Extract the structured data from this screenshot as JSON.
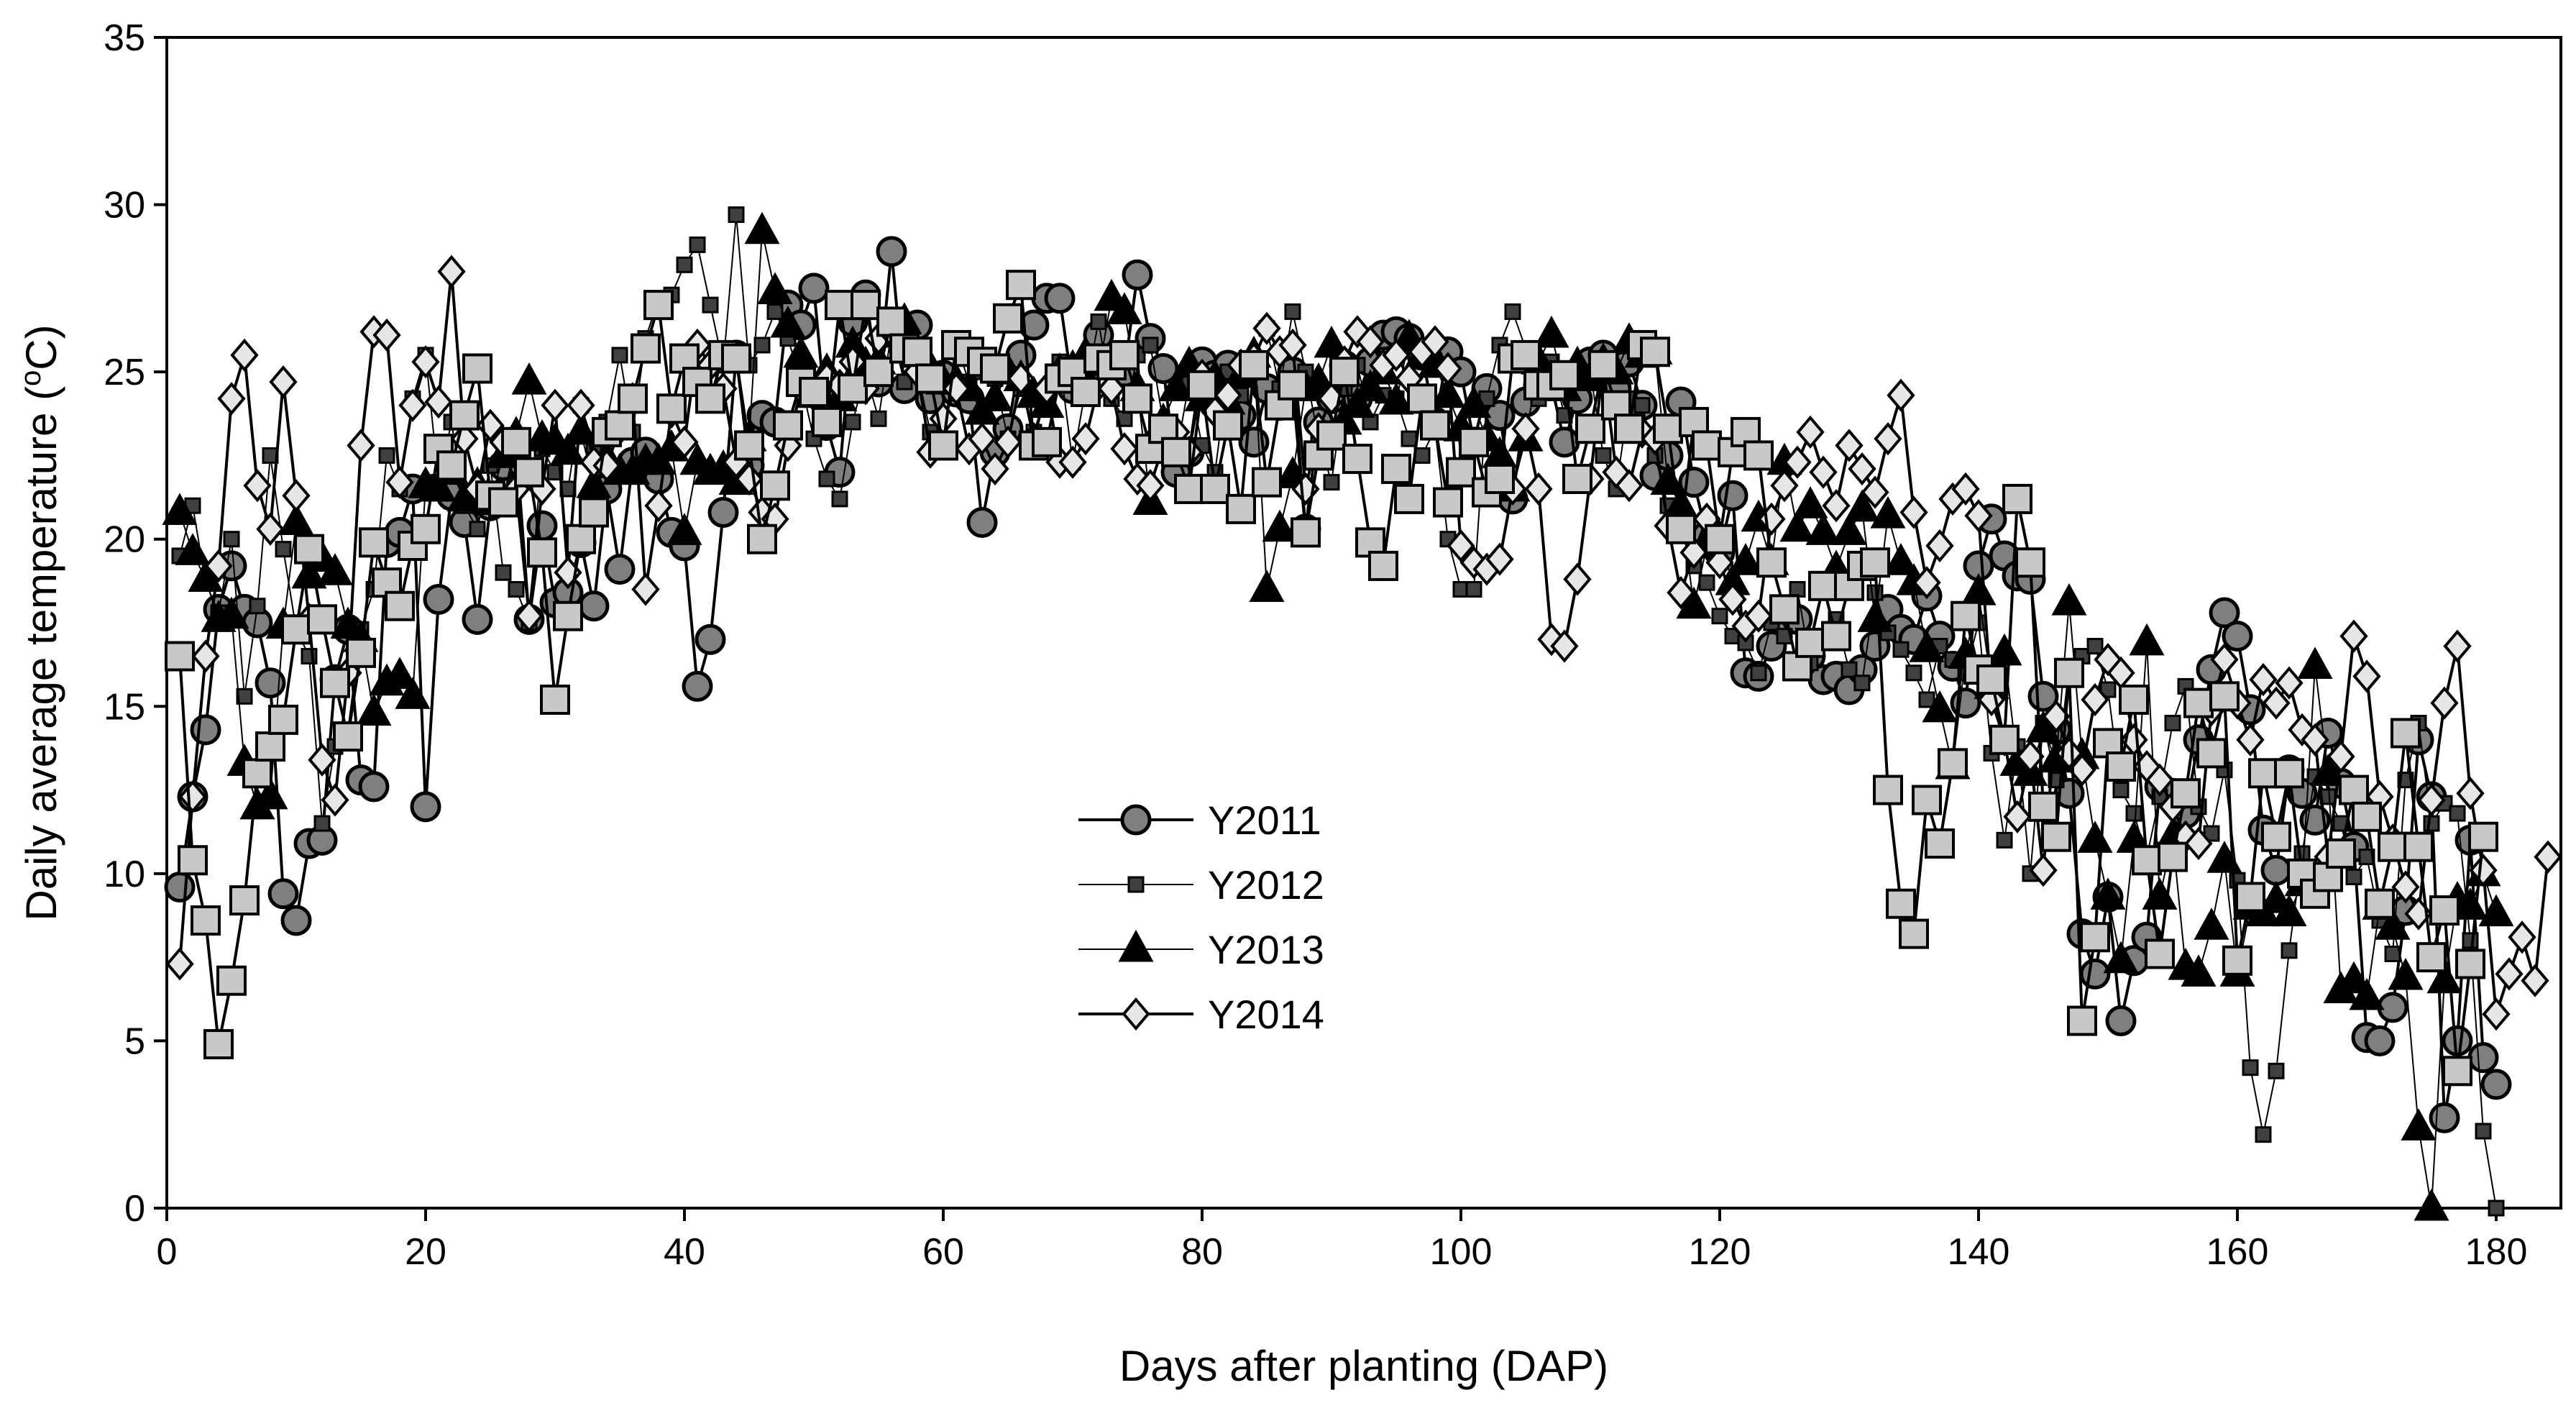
{
  "chart_data": {
    "type": "line",
    "title": "",
    "xlabel": "Days after planting (DAP)",
    "ylabel_prefix": "Daily average temperature (",
    "ylabel_sup": "o",
    "ylabel_suffix": "C)",
    "xlim": [
      0,
      185
    ],
    "ylim": [
      0,
      35
    ],
    "xticks": [
      0,
      20,
      40,
      60,
      80,
      100,
      120,
      140,
      160,
      180
    ],
    "yticks": [
      0,
      5,
      10,
      15,
      20,
      25,
      30,
      35
    ],
    "legend_position": "center",
    "x_start": 1,
    "series": [
      {
        "name": "Y2011",
        "marker": "circle",
        "color": "#7f7f7f",
        "values": [
          9.6,
          12.3,
          14.3,
          17.9,
          19.2,
          17.9,
          17.5,
          15.7,
          9.4,
          8.6,
          10.9,
          11.0,
          15.8,
          17.3,
          12.8,
          12.6,
          19.9,
          20.2,
          21.5,
          12.0,
          18.2,
          21.3,
          20.5,
          17.6,
          21.0,
          22.2,
          22.8,
          17.6,
          20.4,
          18.1,
          18.4,
          19.9,
          18.0,
          21.5,
          19.1,
          22.3,
          22.6,
          21.8,
          20.2,
          19.8,
          15.6,
          17.0,
          20.8,
          25.5,
          22.2,
          23.7,
          23.5,
          27.0,
          26.4,
          27.5,
          23.4,
          22.0,
          26.5,
          27.3,
          24.7,
          28.6,
          24.5,
          26.4,
          24.2,
          24.9,
          24.4,
          24.2,
          20.5,
          22.6,
          23.3,
          25.5,
          26.4,
          27.2,
          27.2,
          24.5,
          24.8,
          26.1,
          25.3,
          25.0,
          27.9,
          26.0,
          25.1,
          22.0,
          22.6,
          25.3,
          24.9,
          25.2,
          23.7,
          22.9,
          24.5,
          24.0,
          25.0,
          20.3,
          23.5,
          24.2,
          25.2,
          24.2,
          25.3,
          26.1,
          26.2,
          26.0,
          25.5,
          23.5,
          25.6,
          25.0,
          22.9,
          24.5,
          23.7,
          21.2,
          24.1,
          24.6,
          24.6,
          22.9,
          24.2,
          25.3,
          25.5,
          24.5,
          25.3,
          24.0,
          21.9,
          22.5,
          24.1,
          21.7,
          20.1,
          19.6,
          21.3,
          16.0,
          15.9,
          16.8,
          17.6,
          17.6,
          16.5,
          15.8,
          15.9,
          15.5,
          16.1,
          16.8,
          17.9,
          17.3,
          17.0,
          18.3,
          17.1,
          16.2,
          15.1,
          19.2,
          20.6,
          19.5,
          18.9,
          18.8,
          15.3,
          14.3,
          12.4,
          8.2,
          7.0,
          9.3,
          5.6,
          7.4,
          8.1,
          12.6,
          12.4,
          11.8,
          14.0,
          16.1,
          17.8,
          17.1,
          14.9,
          11.3,
          10.1,
          13.1,
          12.4,
          11.6,
          14.2,
          12.7,
          10.8,
          5.1,
          5.0,
          6.0,
          8.9,
          14.0,
          12.3,
          2.7,
          5.0,
          11.0,
          4.5,
          3.7
        ]
      },
      {
        "name": "Y2012",
        "marker": "small-square",
        "color": "#404040",
        "values": [
          19.5,
          21.0,
          18.7,
          17.8,
          20.0,
          15.3,
          18.0,
          22.5,
          19.7,
          17.3,
          16.5,
          11.5,
          13.8,
          14.3,
          17.3,
          18.5,
          22.5,
          21.5,
          24.2,
          25.5,
          21.7,
          23.5,
          21.0,
          20.3,
          22.2,
          19.0,
          18.5,
          17.5,
          22.7,
          22.0,
          21.5,
          24.0,
          22.8,
          23.5,
          25.5,
          23.2,
          26.0,
          27.2,
          27.3,
          28.2,
          28.8,
          27.0,
          25.2,
          29.7,
          25.2,
          25.8,
          26.8,
          26.0,
          24.7,
          23.0,
          21.8,
          21.2,
          23.5,
          25.0,
          23.6,
          26.2,
          24.7,
          25.0,
          23.2,
          22.7,
          25.8,
          24.7,
          25.0,
          24.8,
          23.0,
          24.5,
          23.2,
          24.4,
          25.3,
          22.3,
          24.5,
          26.5,
          24.2,
          23.6,
          25.5,
          25.8,
          23.5,
          22.5,
          24.7,
          22.8,
          22.0,
          25.0,
          24.3,
          25.3,
          26.3,
          24.5,
          26.8,
          25.0,
          23.0,
          21.7,
          24.5,
          25.2,
          23.5,
          24.3,
          24.2,
          23.0,
          22.5,
          23.3,
          20.0,
          18.5,
          18.5,
          24.2,
          25.8,
          26.8,
          25.7,
          24.2,
          25.3,
          23.7,
          24.8,
          25.0,
          22.5,
          21.5,
          24.2,
          24.0,
          22.5,
          21.0,
          20.2,
          19.2,
          18.7,
          17.7,
          17.1,
          16.9,
          16.0,
          17.5,
          17.1,
          18.5,
          16.3,
          17.0,
          17.6,
          16.1,
          15.7,
          18.4,
          17.2,
          16.7,
          16.0,
          15.2,
          16.8,
          16.4,
          16.0,
          17.5,
          13.6,
          11.0,
          13.8,
          10.0,
          14.5,
          12.8,
          16.2,
          16.5,
          16.8,
          15.5,
          12.5,
          11.8,
          10.5,
          12.3,
          14.5,
          15.6,
          12.0,
          11.2,
          13.1,
          9.8,
          4.2,
          2.2,
          4.1,
          7.7,
          10.6,
          12.9,
          12.3,
          11.5,
          9.9,
          10.5,
          8.6,
          7.6,
          12.8,
          14.5,
          11.5,
          12.1,
          11.8,
          8.0,
          2.3,
          0.0
        ]
      },
      {
        "name": "Y2013",
        "marker": "triangle",
        "color": "#000000",
        "values": [
          20.8,
          19.6,
          18.8,
          17.6,
          17.7,
          13.3,
          12.0,
          12.3,
          17.4,
          20.5,
          18.9,
          19.4,
          19.0,
          17.4,
          17.0,
          14.8,
          15.7,
          15.9,
          15.3,
          21.6,
          21.5,
          22.0,
          21.2,
          21.6,
          21.1,
          22.5,
          23.1,
          24.7,
          23.0,
          22.9,
          22.6,
          23.2,
          21.6,
          22.4,
          22.0,
          22.0,
          22.3,
          22.3,
          22.7,
          20.2,
          22.3,
          22.0,
          22.1,
          21.7,
          23.0,
          29.2,
          27.4,
          26.4,
          25.5,
          24.3,
          25.0,
          24.2,
          25.8,
          25.2,
          25.3,
          26.1,
          26.5,
          25.5,
          25.1,
          24.7,
          24.7,
          24.5,
          23.8,
          24.2,
          25.0,
          24.8,
          24.3,
          24.0,
          25.0,
          25.1,
          25.5,
          25.0,
          27.2,
          26.8,
          24.5,
          21.1,
          23.5,
          24.5,
          25.2,
          24.2,
          24.8,
          24.1,
          24.9,
          25.5,
          18.5,
          20.3,
          21.9,
          24.5,
          24.7,
          25.8,
          23.5,
          24.0,
          24.5,
          25.0,
          24.1,
          26.0,
          25.5,
          25.2,
          24.3,
          23.3,
          24.0,
          23.0,
          22.5,
          21.5,
          23.0,
          25.3,
          26.1,
          24.5,
          25.2,
          24.8,
          25.3,
          25.0,
          25.9,
          25.5,
          25.6,
          21.7,
          21.0,
          18.0,
          19.8,
          20.0,
          18.7,
          19.3,
          20.6,
          19.3,
          22.3,
          20.3,
          21.0,
          20.2,
          19.1,
          20.2,
          20.9,
          17.6,
          20.7,
          19.3,
          18.7,
          16.7,
          14.9,
          13.2,
          16.5,
          18.4,
          15.6,
          16.6,
          13.3,
          13.0,
          14.3,
          13.4,
          18.1,
          13.5,
          11.0,
          9.3,
          7.4,
          11.0,
          16.9,
          9.3,
          11.1,
          7.2,
          7.0,
          8.4,
          10.4,
          7.0,
          9.0,
          8.8,
          9.2,
          8.8,
          9.7,
          16.2,
          13.0,
          6.5,
          6.8,
          6.3,
          9.0,
          8.4,
          6.9,
          2.4,
          0.0,
          6.8,
          9.2,
          9.0,
          10.0,
          8.8
        ]
      },
      {
        "name": "Y2014",
        "marker": "diamond",
        "color": "#e6e6e6",
        "values": [
          7.3,
          12.3,
          16.5,
          19.2,
          24.2,
          25.5,
          21.6,
          20.3,
          24.7,
          21.3,
          17.6,
          13.4,
          12.2,
          16.0,
          22.8,
          26.2,
          26.1,
          21.7,
          24.0,
          25.3,
          24.1,
          28.0,
          23.0,
          21.5,
          23.4,
          22.9,
          21.5,
          17.7,
          21.5,
          24.0,
          19.0,
          24.0,
          22.3,
          22.2,
          23.3,
          24.2,
          18.5,
          21.0,
          23.8,
          22.9,
          25.8,
          25.2,
          24.5,
          22.3,
          21.8,
          20.8,
          20.6,
          22.8,
          24.5,
          24.3,
          24.8,
          24.6,
          25.3,
          24.5,
          26.0,
          26.2,
          25.8,
          25.0,
          22.6,
          23.6,
          24.5,
          22.7,
          23.0,
          22.1,
          22.9,
          24.8,
          23.0,
          24.5,
          22.3,
          22.3,
          23.0,
          24.6,
          24.5,
          22.7,
          21.8,
          21.6,
          22.8,
          23.2,
          22.6,
          24.9,
          23.8,
          24.3,
          25.2,
          25.4,
          26.3,
          25.6,
          25.8,
          21.5,
          23.3,
          24.2,
          25.3,
          26.2,
          25.9,
          25.2,
          25.5,
          24.8,
          25.6,
          25.9,
          25.1,
          19.8,
          19.3,
          19.1,
          19.4,
          21.5,
          23.3,
          21.5,
          17.0,
          16.8,
          18.8,
          21.8,
          25.2,
          22.0,
          21.6,
          23.2,
          23.0,
          20.4,
          18.4,
          19.6,
          20.6,
          19.3,
          18.2,
          17.4,
          17.7,
          20.6,
          21.6,
          22.3,
          23.2,
          22.0,
          21.0,
          22.8,
          22.1,
          21.4,
          23.0,
          24.3,
          20.8,
          18.7,
          19.8,
          21.2,
          21.5,
          20.7,
          15.2,
          14.0,
          11.7,
          13.5,
          10.1,
          14.7,
          13.6,
          13.1,
          15.2,
          16.4,
          16.0,
          14.0,
          13.2,
          12.8,
          12.0,
          11.1,
          10.9,
          14.9,
          16.4,
          15.1,
          14.0,
          15.8,
          15.1,
          15.7,
          14.3,
          14.0,
          10.5,
          13.5,
          17.1,
          15.9,
          12.3,
          11.0,
          9.6,
          8.8,
          12.2,
          15.1,
          16.8,
          12.4,
          10.1,
          5.8,
          7.0,
          8.1,
          6.8,
          10.5
        ]
      },
      {
        "name": "Y2014",
        "legend": false,
        "marker": "square",
        "color": "#c8c8c8",
        "values": [
          16.5,
          10.4,
          8.6,
          4.9,
          6.8,
          9.2,
          13.0,
          13.8,
          14.6,
          17.3,
          19.7,
          17.6,
          15.7,
          14.1,
          16.6,
          19.9,
          18.7,
          18.0,
          19.8,
          20.3,
          22.7,
          22.2,
          23.7,
          25.1,
          21.3,
          21.1,
          22.9,
          22.0,
          19.6,
          15.2,
          17.7,
          20.0,
          20.8,
          23.2,
          23.4,
          24.2,
          25.7,
          27.0,
          23.9,
          25.4,
          24.7,
          24.2,
          25.5,
          25.4,
          22.8,
          20.0,
          21.6,
          23.4,
          24.7,
          24.4,
          23.5,
          27.0,
          24.5,
          27.0,
          25.0,
          26.5,
          25.7,
          25.6,
          24.8,
          22.8,
          25.8,
          25.6,
          25.3,
          25.1,
          26.6,
          27.6,
          22.8,
          22.9,
          24.8,
          25.0,
          24.4,
          25.4,
          25.2,
          25.5,
          24.2,
          22.7,
          23.3,
          22.6,
          21.5,
          24.6,
          21.5,
          23.4,
          20.9,
          25.2,
          21.7,
          24.0,
          24.6,
          20.2,
          22.5,
          23.1,
          25.0,
          22.4,
          19.9,
          19.2,
          22.1,
          21.2,
          24.2,
          23.4,
          21.1,
          22.0,
          22.9,
          21.4,
          21.8,
          25.4,
          25.5,
          24.6,
          24.6,
          24.9,
          21.8,
          23.3,
          25.2,
          24.0,
          23.3,
          25.8,
          25.6,
          23.3,
          20.3,
          23.5,
          22.8,
          20.0,
          22.6,
          23.2,
          22.5,
          19.3,
          17.9,
          16.2,
          16.9,
          18.6,
          17.1,
          18.6,
          19.2,
          19.3,
          12.5,
          9.1,
          8.2,
          12.2,
          10.9,
          13.3,
          17.7,
          16.1,
          15.8,
          14.0,
          21.2,
          19.3,
          12.0,
          11.1,
          16.0,
          5.6,
          8.1,
          13.9,
          13.2,
          15.2,
          10.4,
          7.6,
          10.5,
          12.4,
          15.1,
          13.6,
          15.3,
          7.4,
          9.3,
          13.0,
          11.1,
          13.0,
          10.0,
          9.4,
          9.9,
          10.6,
          12.5,
          11.7,
          9.1,
          10.8,
          14.2,
          10.8,
          7.5,
          8.9,
          4.1,
          7.3,
          11.1
        ]
      }
    ]
  }
}
